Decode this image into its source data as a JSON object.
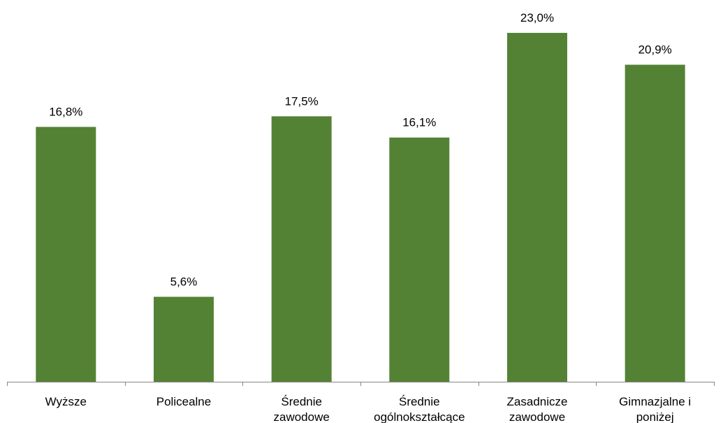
{
  "chart_data": {
    "type": "bar",
    "categories": [
      [
        "Wyższe"
      ],
      [
        "Policealne"
      ],
      [
        "Średnie",
        "zawodowe"
      ],
      [
        "Średnie",
        "ogólnokształcące"
      ],
      [
        "Zasadnicze",
        "zawodowe"
      ],
      [
        "Gimnazjalne i",
        "poniżej"
      ]
    ],
    "values": [
      16.8,
      5.6,
      17.5,
      16.1,
      23.0,
      20.9
    ],
    "value_labels": [
      "16,8%",
      "5,6%",
      "17,5%",
      "16,1%",
      "23,0%",
      "20,9%"
    ],
    "ylim": [
      0,
      23.0
    ],
    "grid": false,
    "legend": "none",
    "bar_color": "#548235",
    "axis_color": "#868686"
  }
}
